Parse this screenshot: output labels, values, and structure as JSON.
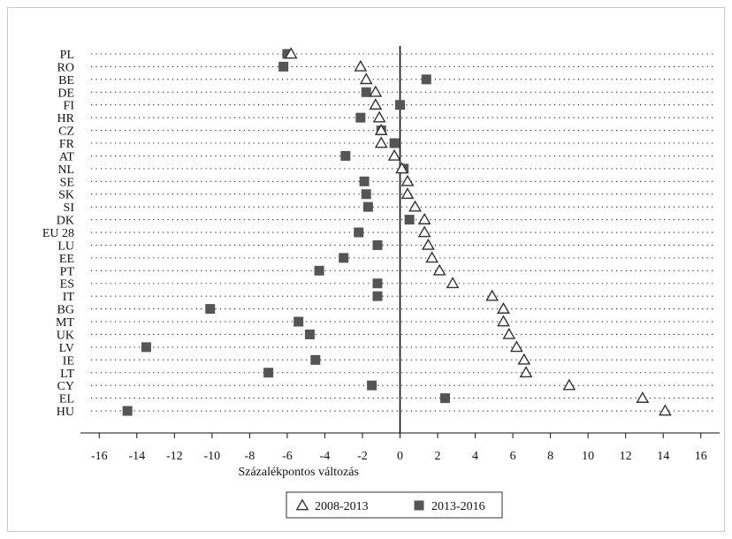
{
  "chart_data": {
    "type": "scatter",
    "orientation": "horizontal-dot-plot",
    "title": "",
    "xlabel": "Százalékpontos változás",
    "ylabel": "",
    "xlim": [
      -17,
      17
    ],
    "xticks": [
      -16,
      -14,
      -12,
      -10,
      -8,
      -6,
      -4,
      -2,
      0,
      2,
      4,
      6,
      8,
      10,
      12,
      14,
      16
    ],
    "grid": "dotted horizontal lines per category",
    "legend_position": "bottom-center",
    "categories": [
      "PL",
      "RO",
      "BE",
      "DE",
      "FI",
      "HR",
      "CZ",
      "FR",
      "AT",
      "NL",
      "SE",
      "SK",
      "SI",
      "DK",
      "EU 28",
      "LU",
      "EE",
      "PT",
      "ES",
      "IT",
      "BG",
      "MT",
      "UK",
      "LV",
      "IE",
      "LT",
      "CY",
      "EL",
      "HU"
    ],
    "series": [
      {
        "name": "2008-2013",
        "marker": "triangle-hollow",
        "color": "#333333",
        "values": [
          -5.8,
          -2.1,
          -1.8,
          -1.3,
          -1.3,
          -1.1,
          -1.0,
          -1.0,
          -0.3,
          0.1,
          0.4,
          0.4,
          0.8,
          1.3,
          1.3,
          1.5,
          1.7,
          2.1,
          2.8,
          4.9,
          5.5,
          5.5,
          5.8,
          6.2,
          6.6,
          6.7,
          9.0,
          12.9,
          14.1
        ]
      },
      {
        "name": "2013-2016",
        "marker": "square-filled",
        "color": "#555555",
        "values": [
          -6.0,
          -6.2,
          1.4,
          -1.8,
          0.0,
          -2.1,
          -1.0,
          -0.3,
          -2.9,
          0.2,
          -1.9,
          -1.8,
          -1.7,
          0.5,
          -2.2,
          -1.2,
          -3.0,
          -4.3,
          -1.2,
          -1.2,
          -10.1,
          -5.4,
          -4.8,
          -13.5,
          -4.5,
          -7.0,
          -1.5,
          2.4,
          -14.5
        ]
      }
    ]
  }
}
